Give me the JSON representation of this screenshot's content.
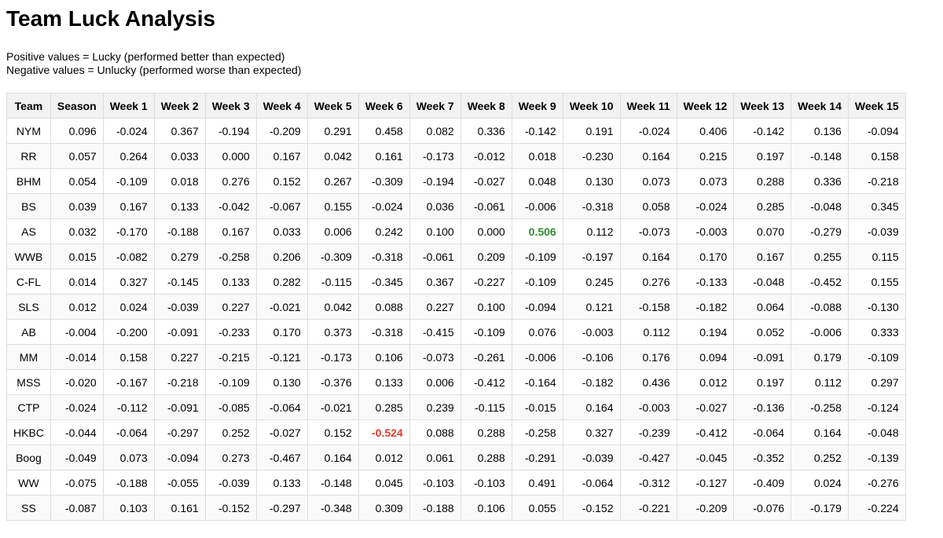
{
  "title": "Team Luck Analysis",
  "legend": {
    "positive": "Positive values = Lucky (performed better than expected)",
    "negative": "Negative values = Unlucky (performed worse than expected)"
  },
  "colors": {
    "highlight_positive": "#2e8b2e",
    "highlight_negative": "#e03c2d"
  },
  "columns": [
    "Team",
    "Season",
    "Week 1",
    "Week 2",
    "Week 3",
    "Week 4",
    "Week 5",
    "Week 6",
    "Week 7",
    "Week 8",
    "Week 9",
    "Week 10",
    "Week 11",
    "Week 12",
    "Week 13",
    "Week 14",
    "Week 15"
  ],
  "rows": [
    {
      "team": "NYM",
      "values": [
        "0.096",
        "-0.024",
        "0.367",
        "-0.194",
        "-0.209",
        "0.291",
        "0.458",
        "0.082",
        "0.336",
        "-0.142",
        "0.191",
        "-0.024",
        "0.406",
        "-0.142",
        "0.136",
        "-0.094"
      ]
    },
    {
      "team": "RR",
      "values": [
        "0.057",
        "0.264",
        "0.033",
        "0.000",
        "0.167",
        "0.042",
        "0.161",
        "-0.173",
        "-0.012",
        "0.018",
        "-0.230",
        "0.164",
        "0.215",
        "0.197",
        "-0.148",
        "0.158"
      ]
    },
    {
      "team": "BHM",
      "values": [
        "0.054",
        "-0.109",
        "0.018",
        "0.276",
        "0.152",
        "0.267",
        "-0.309",
        "-0.194",
        "-0.027",
        "0.048",
        "0.130",
        "0.073",
        "0.073",
        "0.288",
        "0.336",
        "-0.218"
      ]
    },
    {
      "team": "BS",
      "values": [
        "0.039",
        "0.167",
        "0.133",
        "-0.042",
        "-0.067",
        "0.155",
        "-0.024",
        "0.036",
        "-0.061",
        "-0.006",
        "-0.318",
        "0.058",
        "-0.024",
        "0.285",
        "-0.048",
        "0.345"
      ]
    },
    {
      "team": "AS",
      "values": [
        "0.032",
        "-0.170",
        "-0.188",
        "0.167",
        "0.033",
        "0.006",
        "0.242",
        "0.100",
        "0.000",
        "0.506",
        "0.112",
        "-0.073",
        "-0.003",
        "0.070",
        "-0.279",
        "-0.039"
      ],
      "highlight": {
        "col": 9,
        "kind": "hi"
      }
    },
    {
      "team": "WWB",
      "values": [
        "0.015",
        "-0.082",
        "0.279",
        "-0.258",
        "0.206",
        "-0.309",
        "-0.318",
        "-0.061",
        "0.209",
        "-0.109",
        "-0.197",
        "0.164",
        "0.170",
        "0.167",
        "0.255",
        "0.115"
      ]
    },
    {
      "team": "C-FL",
      "values": [
        "0.014",
        "0.327",
        "-0.145",
        "0.133",
        "0.282",
        "-0.115",
        "-0.345",
        "0.367",
        "-0.227",
        "-0.109",
        "0.245",
        "0.276",
        "-0.133",
        "-0.048",
        "-0.452",
        "0.155"
      ]
    },
    {
      "team": "SLS",
      "values": [
        "0.012",
        "0.024",
        "-0.039",
        "0.227",
        "-0.021",
        "0.042",
        "0.088",
        "0.227",
        "0.100",
        "-0.094",
        "0.121",
        "-0.158",
        "-0.182",
        "0.064",
        "-0.088",
        "-0.130"
      ]
    },
    {
      "team": "AB",
      "values": [
        "-0.004",
        "-0.200",
        "-0.091",
        "-0.233",
        "0.170",
        "0.373",
        "-0.318",
        "-0.415",
        "-0.109",
        "0.076",
        "-0.003",
        "0.112",
        "0.194",
        "0.052",
        "-0.006",
        "0.333"
      ]
    },
    {
      "team": "MM",
      "values": [
        "-0.014",
        "0.158",
        "0.227",
        "-0.215",
        "-0.121",
        "-0.173",
        "0.106",
        "-0.073",
        "-0.261",
        "-0.006",
        "-0.106",
        "0.176",
        "0.094",
        "-0.091",
        "0.179",
        "-0.109"
      ]
    },
    {
      "team": "MSS",
      "values": [
        "-0.020",
        "-0.167",
        "-0.218",
        "-0.109",
        "0.130",
        "-0.376",
        "0.133",
        "0.006",
        "-0.412",
        "-0.164",
        "-0.182",
        "0.436",
        "0.012",
        "0.197",
        "0.112",
        "0.297"
      ]
    },
    {
      "team": "CTP",
      "values": [
        "-0.024",
        "-0.112",
        "-0.091",
        "-0.085",
        "-0.064",
        "-0.021",
        "0.285",
        "0.239",
        "-0.115",
        "-0.015",
        "0.164",
        "-0.003",
        "-0.027",
        "-0.136",
        "-0.258",
        "-0.124"
      ]
    },
    {
      "team": "HKBC",
      "values": [
        "-0.044",
        "-0.064",
        "-0.297",
        "0.252",
        "-0.027",
        "0.152",
        "-0.524",
        "0.088",
        "0.288",
        "-0.258",
        "0.327",
        "-0.239",
        "-0.412",
        "-0.064",
        "0.164",
        "-0.048"
      ],
      "highlight": {
        "col": 6,
        "kind": "lo"
      }
    },
    {
      "team": "Boog",
      "values": [
        "-0.049",
        "0.073",
        "-0.094",
        "0.273",
        "-0.467",
        "0.164",
        "0.012",
        "0.061",
        "0.288",
        "-0.291",
        "-0.039",
        "-0.427",
        "-0.045",
        "-0.352",
        "0.252",
        "-0.139"
      ]
    },
    {
      "team": "WW",
      "values": [
        "-0.075",
        "-0.188",
        "-0.055",
        "-0.039",
        "0.133",
        "-0.148",
        "0.045",
        "-0.103",
        "-0.103",
        "0.491",
        "-0.064",
        "-0.312",
        "-0.127",
        "-0.409",
        "0.024",
        "-0.276"
      ]
    },
    {
      "team": "SS",
      "values": [
        "-0.087",
        "0.103",
        "0.161",
        "-0.152",
        "-0.297",
        "-0.348",
        "0.309",
        "-0.188",
        "0.106",
        "0.055",
        "-0.152",
        "-0.221",
        "-0.209",
        "-0.076",
        "-0.179",
        "-0.224"
      ]
    }
  ]
}
